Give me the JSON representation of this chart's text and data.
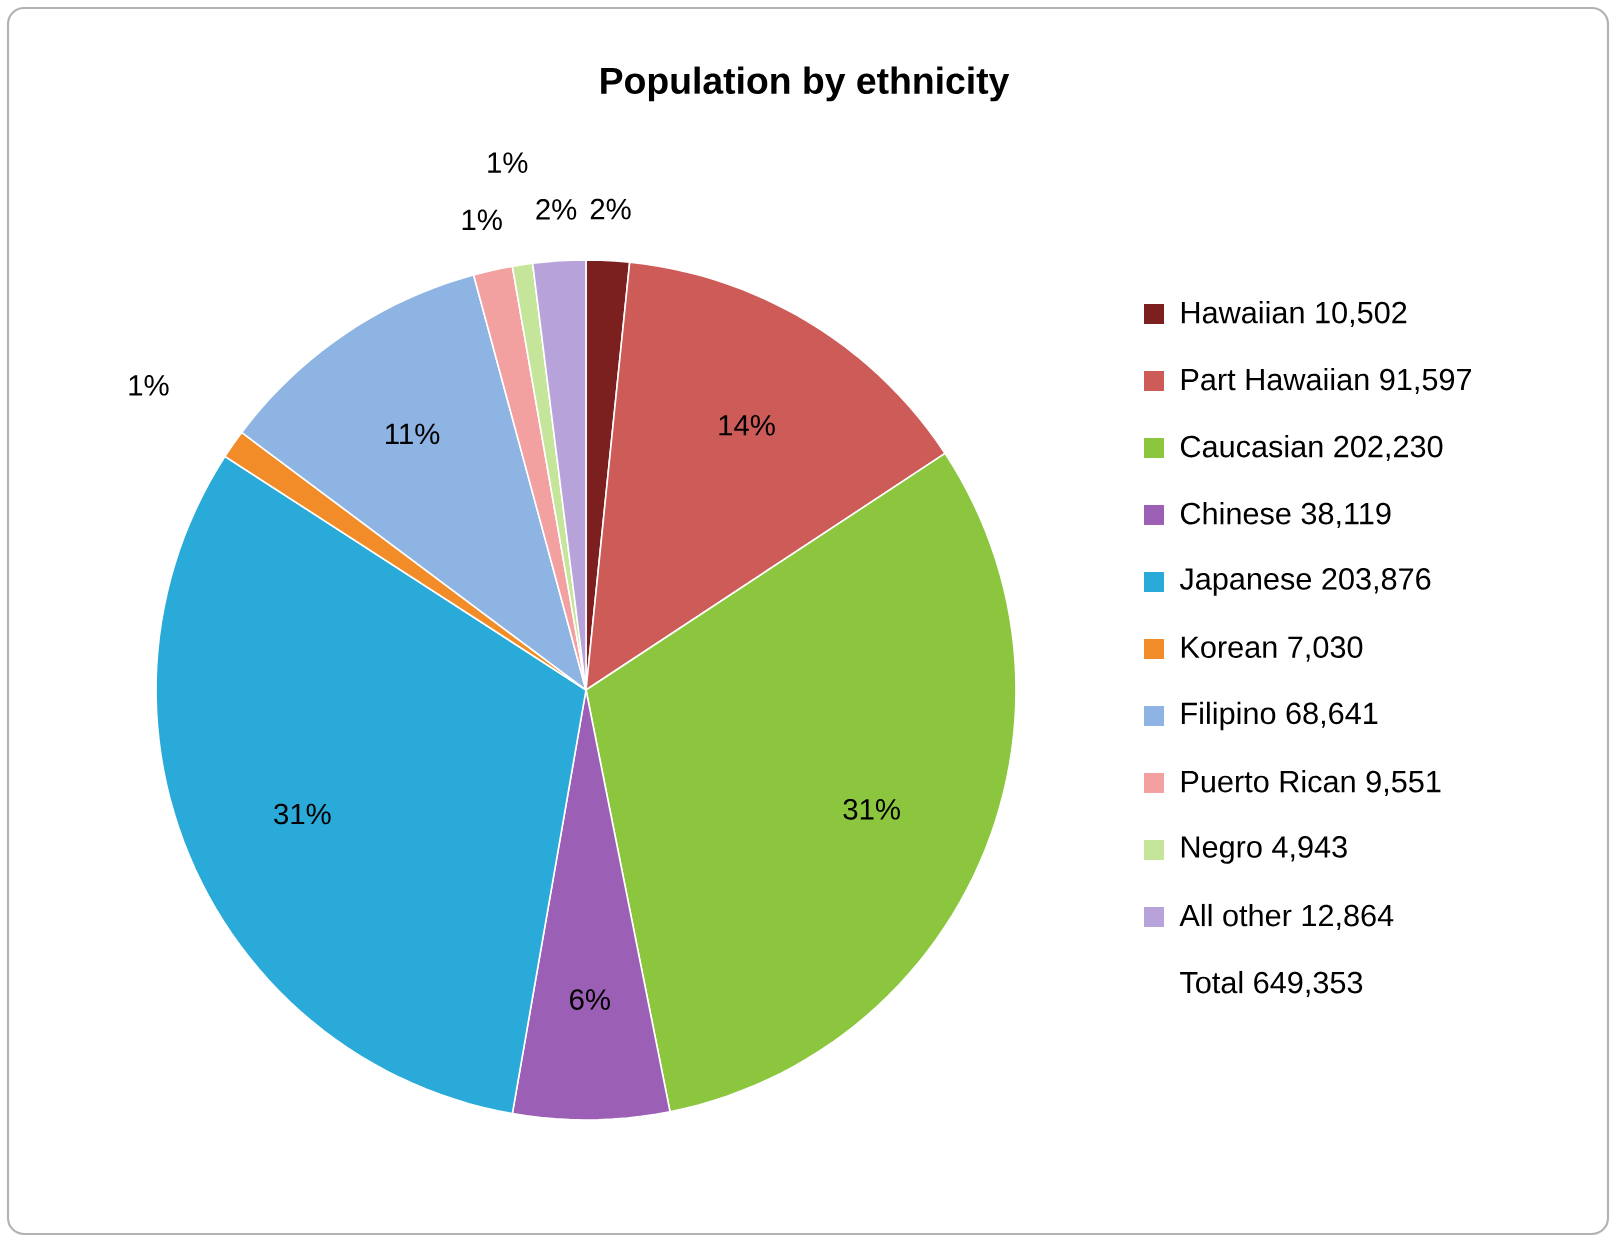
{
  "chart_data": {
    "type": "pie",
    "title": "Population by ethnicity",
    "categories": [
      "Hawaiian 10,502",
      "Part Hawaiian 91,597",
      "Caucasian 202,230",
      "Chinese 38,119",
      "Japanese 203,876",
      "Korean  7,030",
      "Filipino 68,641",
      "Puerto Rican 9,551",
      "Negro  4,943",
      "All other 12,864"
    ],
    "values": [
      1.62,
      14.11,
      31.14,
      5.87,
      31.4,
      1.08,
      10.57,
      1.47,
      0.76,
      1.98
    ],
    "colors": [
      "#7b1f1f",
      "#cd5b57",
      "#8cc63f",
      "#9b5fb5",
      "#2aaad8",
      "#f28c28",
      "#8eb4e3",
      "#f2a0a0",
      "#c5e59a",
      "#b8a2da"
    ],
    "value_labels": [
      "2%",
      "14%",
      "31%",
      "6%",
      "31%",
      "1%",
      "11%",
      "1%",
      "1%",
      "2%"
    ],
    "legend": "right",
    "annotations": [
      "Total 649,353"
    ]
  }
}
